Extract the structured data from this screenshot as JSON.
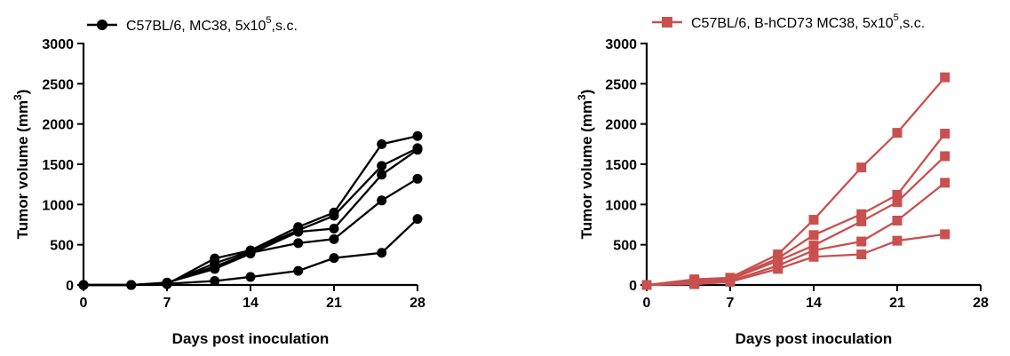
{
  "chart_data": [
    {
      "type": "line",
      "xlabel": "Days post inoculation",
      "ylabel": "Tumor volume (mm3)",
      "ylabel_base": "Tumor volume (mm",
      "ylabel_sup": "3",
      "ylabel_end": ")",
      "xlim": [
        0,
        28
      ],
      "ylim": [
        0,
        3000
      ],
      "xticks": [
        "0",
        "7",
        "14",
        "21",
        "28"
      ],
      "yticks": [
        "0",
        "500",
        "1000",
        "1500",
        "2000",
        "2500",
        "3000"
      ],
      "grid": false,
      "legend_position": "top",
      "legend": {
        "text": "C57BL/6, MC38, 5x10",
        "sup": "5",
        "tail": ",s.c."
      },
      "color": "#000000",
      "marker": "circle",
      "x": [
        0,
        4,
        7,
        11,
        14,
        18,
        21,
        25,
        28
      ],
      "series": [
        {
          "values": [
            0,
            0,
            10,
            330,
            430,
            720,
            900,
            1750,
            1850
          ]
        },
        {
          "values": [
            0,
            0,
            20,
            270,
            420,
            680,
            860,
            1480,
            1700
          ]
        },
        {
          "values": [
            0,
            0,
            30,
            200,
            390,
            660,
            700,
            1370,
            1680
          ]
        },
        {
          "values": [
            0,
            0,
            25,
            230,
            400,
            520,
            570,
            1050,
            1320
          ]
        },
        {
          "values": [
            0,
            0,
            15,
            50,
            100,
            175,
            335,
            400,
            820
          ]
        }
      ]
    },
    {
      "type": "line",
      "xlabel": "Days post inoculation",
      "ylabel": "Tumor volume (mm3)",
      "ylabel_base": "Tumor volume (mm",
      "ylabel_sup": "3",
      "ylabel_end": ")",
      "xlim": [
        0,
        28
      ],
      "ylim": [
        0,
        3000
      ],
      "xticks": [
        "0",
        "7",
        "14",
        "21",
        "28"
      ],
      "yticks": [
        "0",
        "500",
        "1000",
        "1500",
        "2000",
        "2500",
        "3000"
      ],
      "grid": false,
      "legend_position": "top",
      "legend": {
        "text": "C57BL/6, B-hCD73 MC38, 5x10",
        "sup": "5",
        "tail": ",s.c."
      },
      "color": "#c9504f",
      "marker": "square",
      "x": [
        0,
        4,
        7,
        11,
        14,
        18,
        21,
        25
      ],
      "series": [
        {
          "values": [
            0,
            70,
            90,
            380,
            810,
            1460,
            1890,
            2580
          ]
        },
        {
          "values": [
            0,
            50,
            80,
            330,
            620,
            880,
            1120,
            1880
          ]
        },
        {
          "values": [
            0,
            40,
            70,
            300,
            490,
            790,
            1030,
            1600
          ]
        },
        {
          "values": [
            0,
            20,
            50,
            240,
            430,
            540,
            800,
            1270
          ]
        },
        {
          "values": [
            0,
            10,
            40,
            200,
            350,
            380,
            550,
            630
          ]
        }
      ]
    }
  ]
}
